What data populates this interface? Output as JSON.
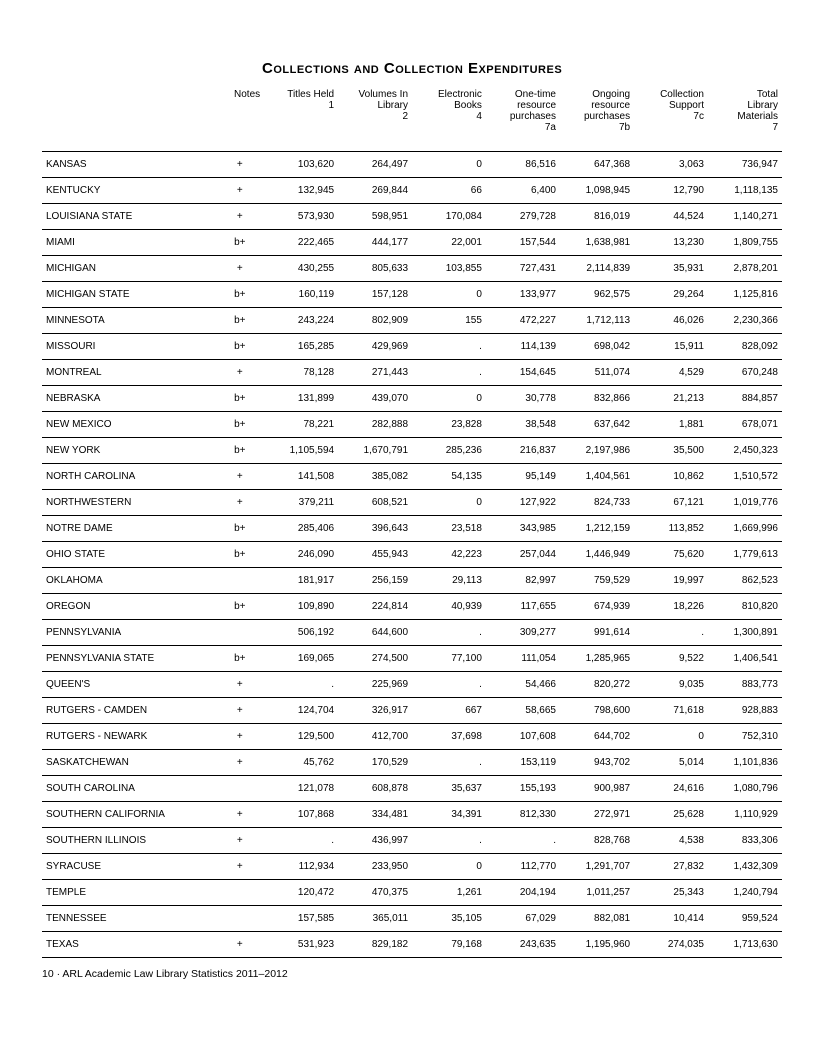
{
  "title": "Collections and Collection Expenditures",
  "footer": "10 · ARL Academic Law Library Statistics 2011–2012",
  "columns": [
    {
      "lines": [
        ""
      ]
    },
    {
      "lines": [
        "Notes"
      ]
    },
    {
      "lines": [
        "Titles Held",
        "1"
      ]
    },
    {
      "lines": [
        "Volumes In",
        "Library",
        "2"
      ]
    },
    {
      "lines": [
        "Electronic",
        "Books",
        "4"
      ]
    },
    {
      "lines": [
        "One-time",
        "resource",
        "purchases",
        "7a"
      ]
    },
    {
      "lines": [
        "Ongoing",
        "resource",
        "purchases",
        "7b"
      ]
    },
    {
      "lines": [
        "Collection",
        "Support",
        "7c"
      ]
    },
    {
      "lines": [
        "Total",
        "Library",
        "Materials",
        "7"
      ]
    }
  ],
  "rows": [
    {
      "inst": "KANSAS",
      "notes": "+",
      "c1": "103,620",
      "c2": "264,497",
      "c3": "0",
      "c4": "86,516",
      "c5": "647,368",
      "c6": "3,063",
      "c7": "736,947"
    },
    {
      "inst": "KENTUCKY",
      "notes": "+",
      "c1": "132,945",
      "c2": "269,844",
      "c3": "66",
      "c4": "6,400",
      "c5": "1,098,945",
      "c6": "12,790",
      "c7": "1,118,135"
    },
    {
      "inst": "LOUISIANA STATE",
      "notes": "+",
      "c1": "573,930",
      "c2": "598,951",
      "c3": "170,084",
      "c4": "279,728",
      "c5": "816,019",
      "c6": "44,524",
      "c7": "1,140,271"
    },
    {
      "inst": "MIAMI",
      "notes": "b+",
      "c1": "222,465",
      "c2": "444,177",
      "c3": "22,001",
      "c4": "157,544",
      "c5": "1,638,981",
      "c6": "13,230",
      "c7": "1,809,755"
    },
    {
      "inst": "MICHIGAN",
      "notes": "+",
      "c1": "430,255",
      "c2": "805,633",
      "c3": "103,855",
      "c4": "727,431",
      "c5": "2,114,839",
      "c6": "35,931",
      "c7": "2,878,201"
    },
    {
      "inst": "MICHIGAN STATE",
      "notes": "b+",
      "c1": "160,119",
      "c2": "157,128",
      "c3": "0",
      "c4": "133,977",
      "c5": "962,575",
      "c6": "29,264",
      "c7": "1,125,816"
    },
    {
      "inst": "MINNESOTA",
      "notes": "b+",
      "c1": "243,224",
      "c2": "802,909",
      "c3": "155",
      "c4": "472,227",
      "c5": "1,712,113",
      "c6": "46,026",
      "c7": "2,230,366"
    },
    {
      "inst": "MISSOURI",
      "notes": "b+",
      "c1": "165,285",
      "c2": "429,969",
      "c3": ".",
      "c4": "114,139",
      "c5": "698,042",
      "c6": "15,911",
      "c7": "828,092"
    },
    {
      "inst": "MONTREAL",
      "notes": "+",
      "c1": "78,128",
      "c2": "271,443",
      "c3": ".",
      "c4": "154,645",
      "c5": "511,074",
      "c6": "4,529",
      "c7": "670,248"
    },
    {
      "inst": "NEBRASKA",
      "notes": "b+",
      "c1": "131,899",
      "c2": "439,070",
      "c3": "0",
      "c4": "30,778",
      "c5": "832,866",
      "c6": "21,213",
      "c7": "884,857"
    },
    {
      "inst": "NEW MEXICO",
      "notes": "b+",
      "c1": "78,221",
      "c2": "282,888",
      "c3": "23,828",
      "c4": "38,548",
      "c5": "637,642",
      "c6": "1,881",
      "c7": "678,071"
    },
    {
      "inst": "NEW YORK",
      "notes": "b+",
      "c1": "1,105,594",
      "c2": "1,670,791",
      "c3": "285,236",
      "c4": "216,837",
      "c5": "2,197,986",
      "c6": "35,500",
      "c7": "2,450,323"
    },
    {
      "inst": "NORTH CAROLINA",
      "notes": "+",
      "c1": "141,508",
      "c2": "385,082",
      "c3": "54,135",
      "c4": "95,149",
      "c5": "1,404,561",
      "c6": "10,862",
      "c7": "1,510,572"
    },
    {
      "inst": "NORTHWESTERN",
      "notes": "+",
      "c1": "379,211",
      "c2": "608,521",
      "c3": "0",
      "c4": "127,922",
      "c5": "824,733",
      "c6": "67,121",
      "c7": "1,019,776"
    },
    {
      "inst": "NOTRE DAME",
      "notes": "b+",
      "c1": "285,406",
      "c2": "396,643",
      "c3": "23,518",
      "c4": "343,985",
      "c5": "1,212,159",
      "c6": "113,852",
      "c7": "1,669,996"
    },
    {
      "inst": "OHIO STATE",
      "notes": "b+",
      "c1": "246,090",
      "c2": "455,943",
      "c3": "42,223",
      "c4": "257,044",
      "c5": "1,446,949",
      "c6": "75,620",
      "c7": "1,779,613"
    },
    {
      "inst": "OKLAHOMA",
      "notes": "",
      "c1": "181,917",
      "c2": "256,159",
      "c3": "29,113",
      "c4": "82,997",
      "c5": "759,529",
      "c6": "19,997",
      "c7": "862,523"
    },
    {
      "inst": "OREGON",
      "notes": "b+",
      "c1": "109,890",
      "c2": "224,814",
      "c3": "40,939",
      "c4": "117,655",
      "c5": "674,939",
      "c6": "18,226",
      "c7": "810,820"
    },
    {
      "inst": "PENNSYLVANIA",
      "notes": "",
      "c1": "506,192",
      "c2": "644,600",
      "c3": ".",
      "c4": "309,277",
      "c5": "991,614",
      "c6": ".",
      "c7": "1,300,891"
    },
    {
      "inst": "PENNSYLVANIA STATE",
      "notes": "b+",
      "c1": "169,065",
      "c2": "274,500",
      "c3": "77,100",
      "c4": "111,054",
      "c5": "1,285,965",
      "c6": "9,522",
      "c7": "1,406,541"
    },
    {
      "inst": "QUEEN'S",
      "notes": "+",
      "c1": ".",
      "c2": "225,969",
      "c3": ".",
      "c4": "54,466",
      "c5": "820,272",
      "c6": "9,035",
      "c7": "883,773"
    },
    {
      "inst": "RUTGERS - CAMDEN",
      "notes": "+",
      "c1": "124,704",
      "c2": "326,917",
      "c3": "667",
      "c4": "58,665",
      "c5": "798,600",
      "c6": "71,618",
      "c7": "928,883"
    },
    {
      "inst": "RUTGERS - NEWARK",
      "notes": "+",
      "c1": "129,500",
      "c2": "412,700",
      "c3": "37,698",
      "c4": "107,608",
      "c5": "644,702",
      "c6": "0",
      "c7": "752,310"
    },
    {
      "inst": "SASKATCHEWAN",
      "notes": "+",
      "c1": "45,762",
      "c2": "170,529",
      "c3": ".",
      "c4": "153,119",
      "c5": "943,702",
      "c6": "5,014",
      "c7": "1,101,836"
    },
    {
      "inst": "SOUTH CAROLINA",
      "notes": "",
      "c1": "121,078",
      "c2": "608,878",
      "c3": "35,637",
      "c4": "155,193",
      "c5": "900,987",
      "c6": "24,616",
      "c7": "1,080,796"
    },
    {
      "inst": "SOUTHERN CALIFORNIA",
      "notes": "+",
      "c1": "107,868",
      "c2": "334,481",
      "c3": "34,391",
      "c4": "812,330",
      "c5": "272,971",
      "c6": "25,628",
      "c7": "1,110,929"
    },
    {
      "inst": "SOUTHERN ILLINOIS",
      "notes": "+",
      "c1": ".",
      "c2": "436,997",
      "c3": ".",
      "c4": ".",
      "c5": "828,768",
      "c6": "4,538",
      "c7": "833,306"
    },
    {
      "inst": "SYRACUSE",
      "notes": "+",
      "c1": "112,934",
      "c2": "233,950",
      "c3": "0",
      "c4": "112,770",
      "c5": "1,291,707",
      "c6": "27,832",
      "c7": "1,432,309"
    },
    {
      "inst": "TEMPLE",
      "notes": "",
      "c1": "120,472",
      "c2": "470,375",
      "c3": "1,261",
      "c4": "204,194",
      "c5": "1,011,257",
      "c6": "25,343",
      "c7": "1,240,794"
    },
    {
      "inst": "TENNESSEE",
      "notes": "",
      "c1": "157,585",
      "c2": "365,011",
      "c3": "35,105",
      "c4": "67,029",
      "c5": "882,081",
      "c6": "10,414",
      "c7": "959,524"
    },
    {
      "inst": "TEXAS",
      "notes": "+",
      "c1": "531,923",
      "c2": "829,182",
      "c3": "79,168",
      "c4": "243,635",
      "c5": "1,195,960",
      "c6": "274,035",
      "c7": "1,713,630"
    }
  ]
}
